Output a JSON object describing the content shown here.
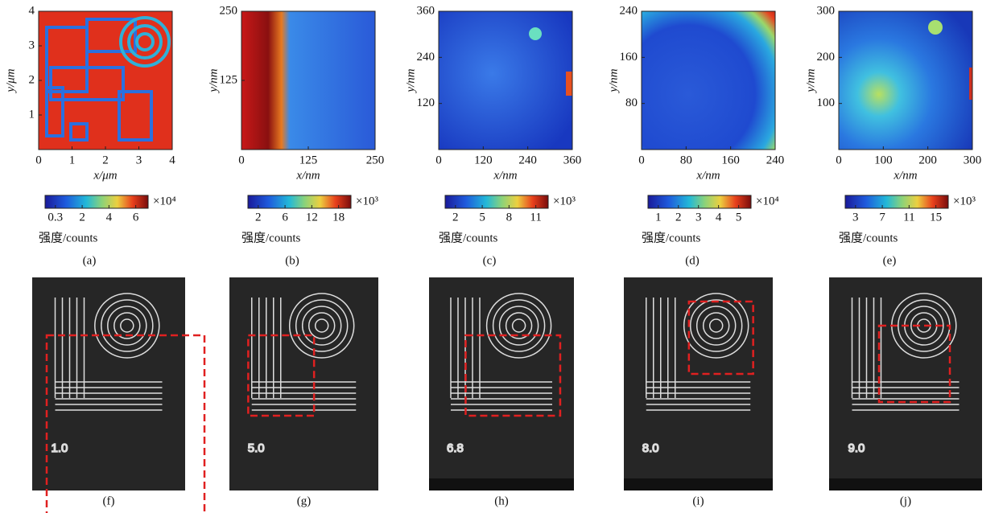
{
  "heatmaps": [
    {
      "x_label": "x/μm",
      "y_label": "y/μm",
      "x_ticks": [
        0,
        1,
        2,
        3,
        4
      ],
      "y_ticks": [
        1,
        2,
        3,
        4
      ],
      "colorbar_ticks": [
        0.3,
        2,
        4,
        6
      ],
      "colorbar_unit": "×10⁴",
      "colorbar_label": "强度/counts",
      "caption": "(a)"
    },
    {
      "x_label": "x/nm",
      "y_label": "y/nm",
      "x_ticks": [
        0,
        125,
        250
      ],
      "y_ticks": [
        125,
        250
      ],
      "colorbar_ticks": [
        2,
        6,
        12,
        18
      ],
      "colorbar_unit": "×10³",
      "colorbar_label": "强度/counts",
      "caption": "(b)"
    },
    {
      "x_label": "x/nm",
      "y_label": "y/nm",
      "x_ticks": [
        0,
        120,
        240,
        360
      ],
      "y_ticks": [
        120,
        240,
        360
      ],
      "colorbar_ticks": [
        2,
        5,
        8,
        11
      ],
      "colorbar_unit": "×10³",
      "colorbar_label": "强度/counts",
      "caption": "(c)"
    },
    {
      "x_label": "x/nm",
      "y_label": "y/nm",
      "x_ticks": [
        0,
        80,
        160,
        240
      ],
      "y_ticks": [
        80,
        160,
        240
      ],
      "colorbar_ticks": [
        1,
        2,
        3,
        4,
        5
      ],
      "colorbar_unit": "×10⁴",
      "colorbar_label": "强度/counts",
      "caption": "(d)"
    },
    {
      "x_label": "x/nm",
      "y_label": "y/nm",
      "x_ticks": [
        0,
        100,
        200,
        300
      ],
      "y_ticks": [
        100,
        200,
        300
      ],
      "colorbar_ticks": [
        3,
        7,
        11,
        15
      ],
      "colorbar_unit": "×10³",
      "colorbar_label": "强度/counts",
      "caption": "(e)"
    }
  ],
  "sem_images": [
    {
      "sample_label": "1.0",
      "caption": "(f)"
    },
    {
      "sample_label": "5.0",
      "caption": "(g)"
    },
    {
      "sample_label": "6.8",
      "caption": "(h)"
    },
    {
      "sample_label": "8.0",
      "caption": "(i)"
    },
    {
      "sample_label": "9.0",
      "caption": "(j)"
    }
  ]
}
